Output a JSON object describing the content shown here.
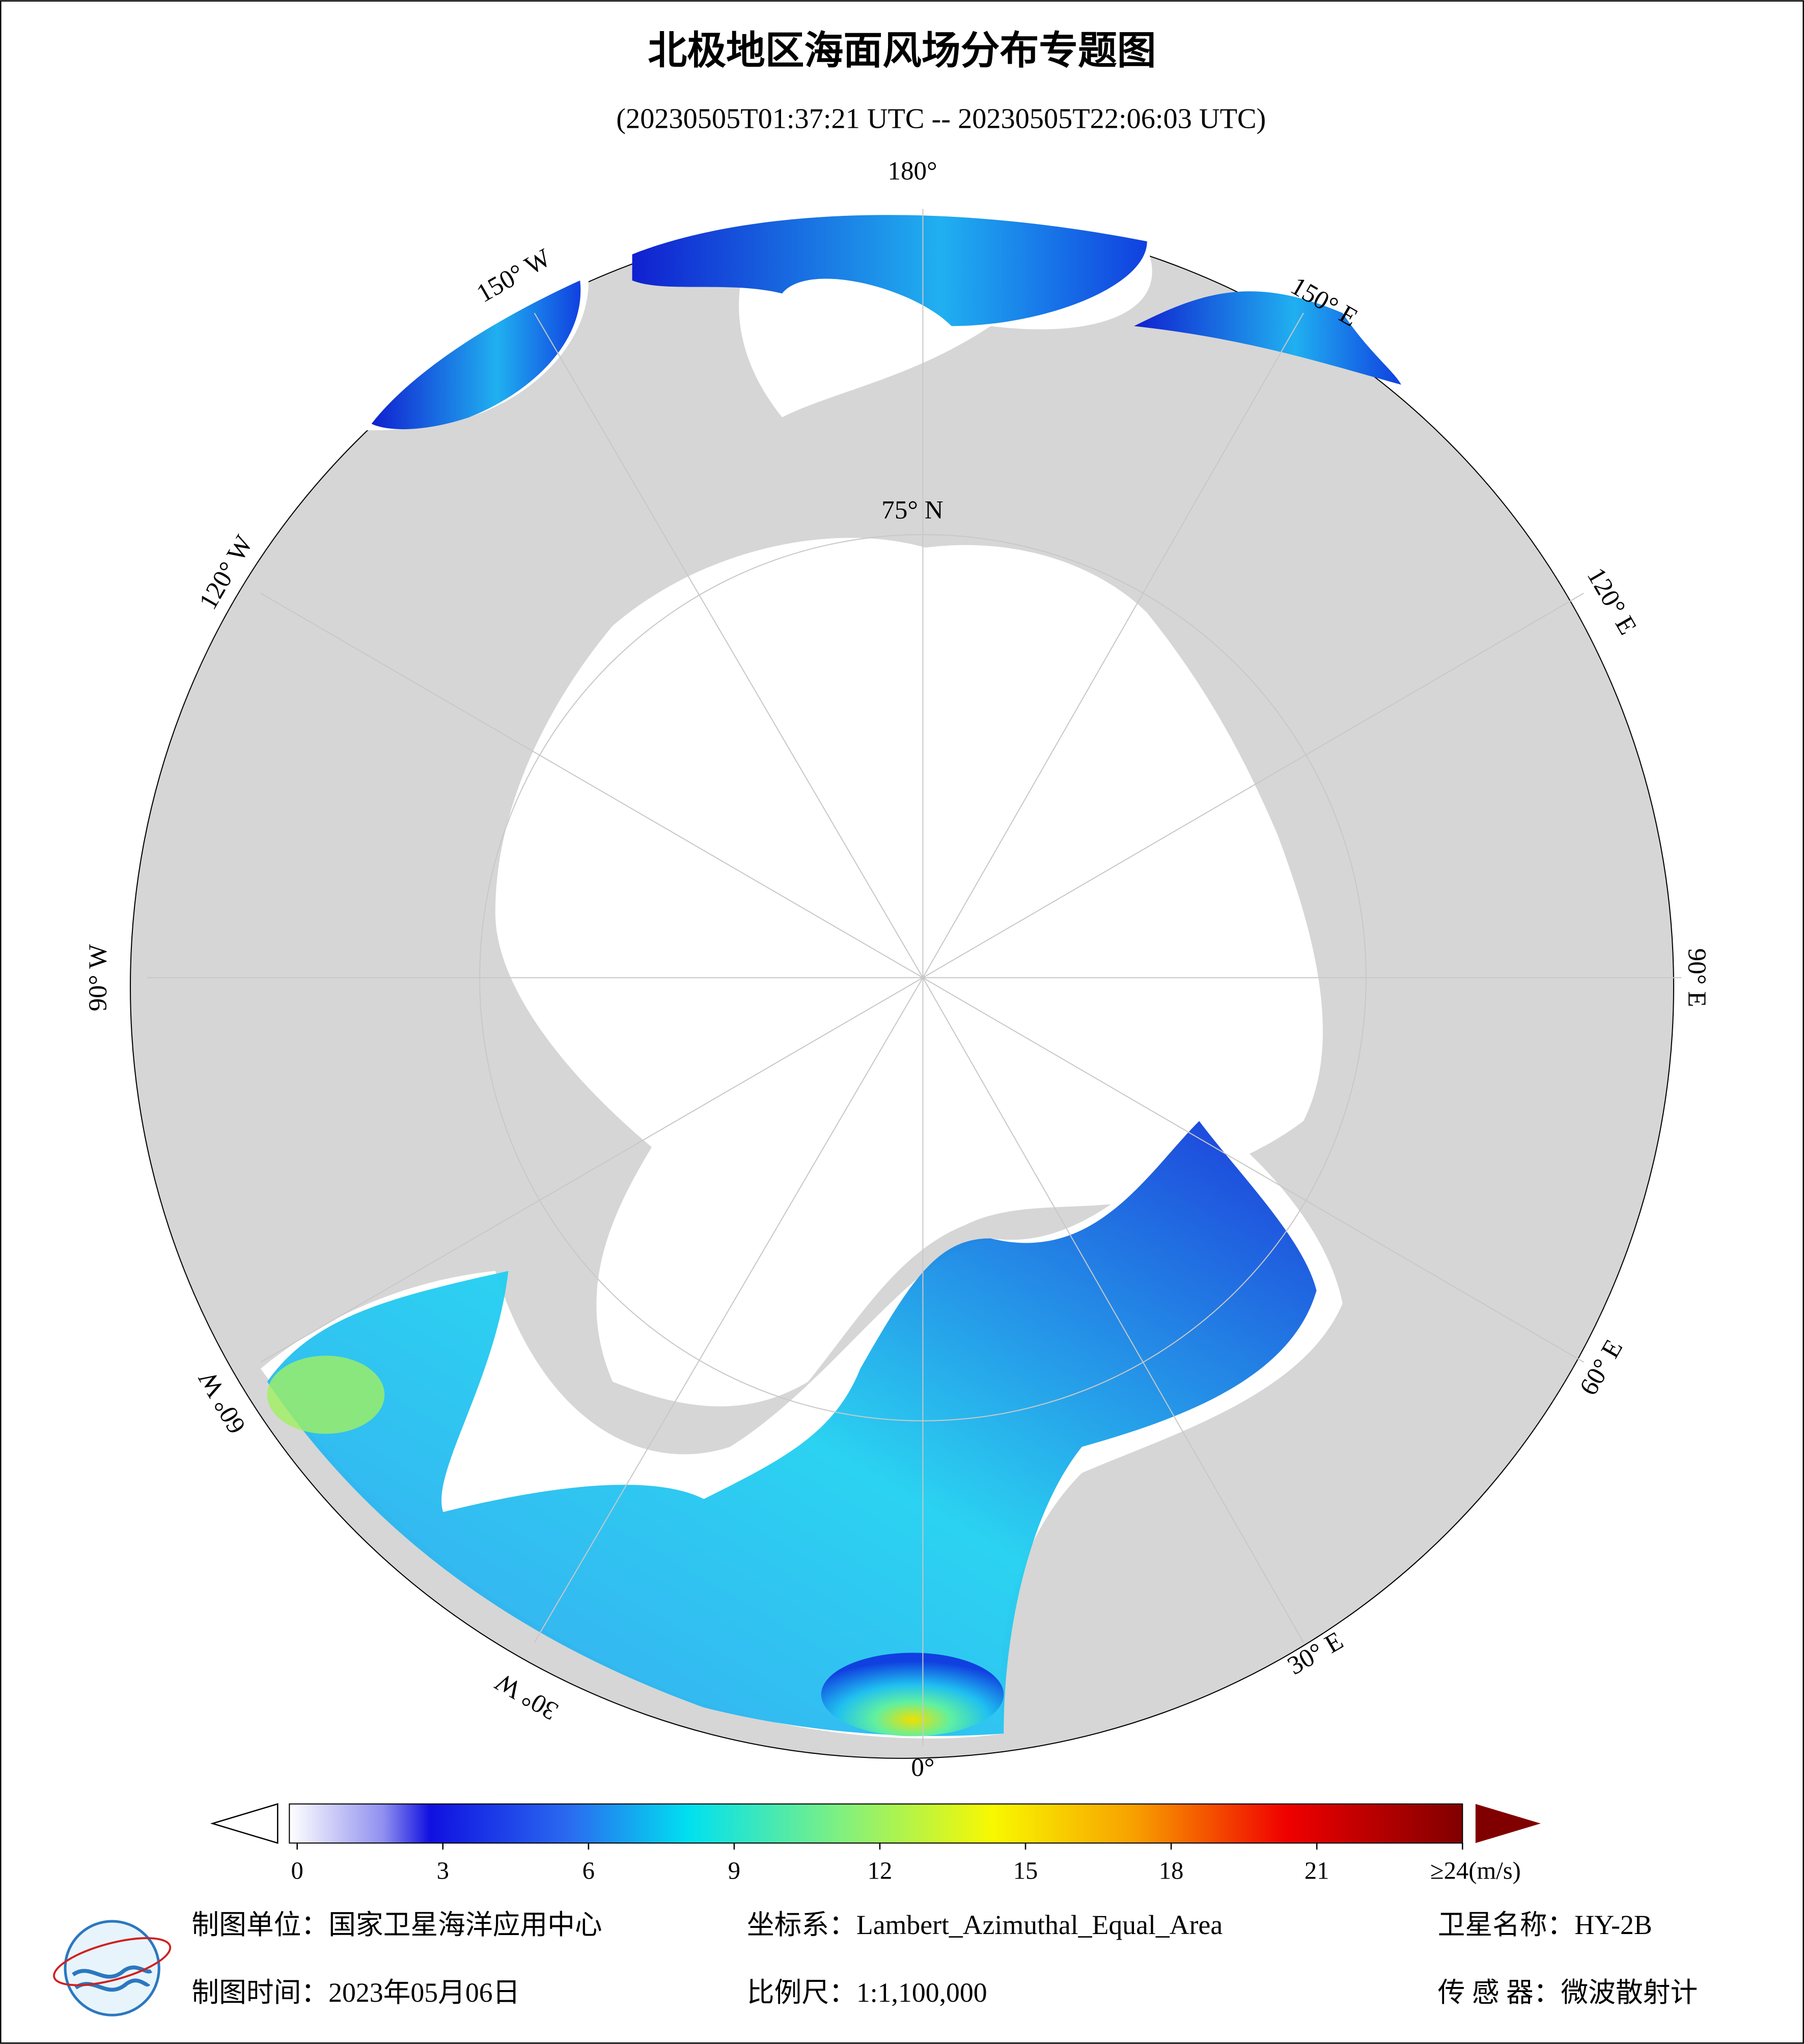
{
  "header": {
    "title": "北极地区海面风场分布专题图",
    "subtitle": "(20230505T01:37:21 UTC -- 20230505T22:06:03 UTC)"
  },
  "map": {
    "graticule_labels": [
      "180°",
      "150° W",
      "120° W",
      "90° W",
      "60° W",
      "30° W",
      "0°",
      "30° E",
      "60° E",
      "90° E",
      "120° E",
      "150° E",
      "75° N"
    ]
  },
  "colorbar": {
    "range": [
      0,
      24
    ],
    "ticks": [
      0,
      3,
      6,
      9,
      12,
      15,
      18,
      21,
      {
        "value": 24,
        "label": "≥24(m/s)"
      }
    ]
  },
  "footer": {
    "organization": "制图单位：国家卫星海洋应用中心",
    "projection": "坐标系：Lambert_Azimuthal_Equal_Area",
    "satellite": "卫星名称：HY-2B",
    "date": "制图时间：2023年05月06日",
    "scale": "比例尺：1:1,100,000",
    "sensor": "传 感 器：微波散射计"
  }
}
